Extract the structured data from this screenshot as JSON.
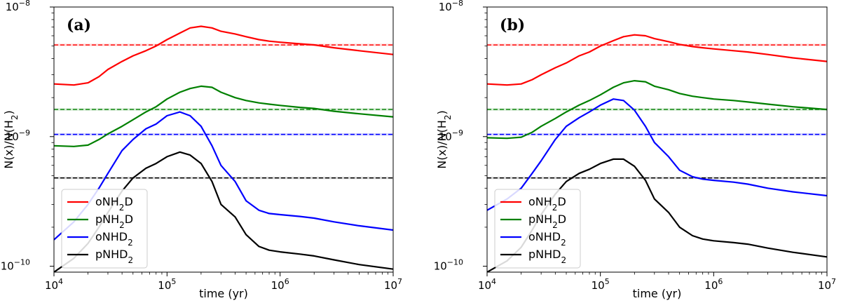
{
  "chart_data": [
    {
      "type": "line",
      "panel_label": "(a)",
      "xlabel": "time (yr)",
      "ylabel": "N(x)/N(H₂)",
      "xscale": "log",
      "yscale": "log",
      "xlim": [
        10000,
        10000000
      ],
      "ylim": [
        9e-11,
        1e-08
      ],
      "x_ticks": [
        {
          "value": 10000,
          "mant": "10",
          "exp": "4"
        },
        {
          "value": 100000,
          "mant": "10",
          "exp": "5"
        },
        {
          "value": 1000000,
          "mant": "10",
          "exp": "6"
        },
        {
          "value": 10000000,
          "mant": "10",
          "exp": "7"
        }
      ],
      "y_ticks": [
        {
          "value": 1e-10,
          "mant": "10",
          "exp": "−10"
        },
        {
          "value": 1e-09,
          "mant": "10",
          "exp": "−9"
        },
        {
          "value": 1e-08,
          "mant": "10",
          "exp": "−8"
        }
      ],
      "legend_position": "lower-left",
      "series": [
        {
          "name": "oNH₂D",
          "color": "#ff0000",
          "observed": 5.1e-09,
          "x": [
            10000,
            15000,
            20000,
            25000,
            30000,
            40000,
            50000,
            65000,
            80000,
            100000,
            130000,
            160000,
            200000,
            250000,
            300000,
            400000,
            500000,
            650000,
            800000,
            1000000,
            1500000,
            2000000,
            3000000,
            5000000,
            10000000
          ],
          "y": [
            2.55e-09,
            2.5e-09,
            2.6e-09,
            2.9e-09,
            3.3e-09,
            3.8e-09,
            4.2e-09,
            4.6e-09,
            5e-09,
            5.6e-09,
            6.3e-09,
            6.9e-09,
            7.1e-09,
            6.9e-09,
            6.5e-09,
            6.2e-09,
            5.9e-09,
            5.6e-09,
            5.45e-09,
            5.35e-09,
            5.2e-09,
            5.1e-09,
            4.85e-09,
            4.6e-09,
            4.3e-09
          ]
        },
        {
          "name": "pNH₂D",
          "color": "#008000",
          "observed": 1.62e-09,
          "x": [
            10000,
            15000,
            20000,
            25000,
            30000,
            40000,
            50000,
            65000,
            80000,
            100000,
            130000,
            160000,
            200000,
            250000,
            300000,
            400000,
            500000,
            650000,
            800000,
            1000000,
            1500000,
            2000000,
            3000000,
            5000000,
            10000000
          ],
          "y": [
            8.5e-10,
            8.4e-10,
            8.6e-10,
            9.5e-10,
            1.05e-09,
            1.2e-09,
            1.35e-09,
            1.55e-09,
            1.7e-09,
            1.95e-09,
            2.2e-09,
            2.35e-09,
            2.45e-09,
            2.4e-09,
            2.2e-09,
            2e-09,
            1.9e-09,
            1.82e-09,
            1.78e-09,
            1.74e-09,
            1.68e-09,
            1.65e-09,
            1.57e-09,
            1.5e-09,
            1.42e-09
          ]
        },
        {
          "name": "oNHD₂",
          "color": "#0000ff",
          "observed": 1.04e-09,
          "x": [
            10000,
            15000,
            20000,
            25000,
            30000,
            40000,
            50000,
            65000,
            80000,
            100000,
            130000,
            160000,
            200000,
            250000,
            300000,
            400000,
            500000,
            650000,
            800000,
            1000000,
            1500000,
            2000000,
            3000000,
            5000000,
            10000000
          ],
          "y": [
            1.6e-10,
            2.2e-10,
            3e-10,
            4e-10,
            5.2e-10,
            7.8e-10,
            9.5e-10,
            1.15e-09,
            1.25e-09,
            1.45e-09,
            1.55e-09,
            1.45e-09,
            1.2e-09,
            8.5e-10,
            6e-10,
            4.5e-10,
            3.2e-10,
            2.7e-10,
            2.55e-10,
            2.5e-10,
            2.42e-10,
            2.35e-10,
            2.2e-10,
            2.05e-10,
            1.9e-10
          ]
        },
        {
          "name": "pNHD₂",
          "color": "#000000",
          "observed": 4.8e-10,
          "x": [
            10000,
            15000,
            20000,
            25000,
            30000,
            40000,
            50000,
            65000,
            80000,
            100000,
            130000,
            160000,
            200000,
            250000,
            300000,
            400000,
            500000,
            650000,
            800000,
            1000000,
            1500000,
            2000000,
            3000000,
            5000000,
            10000000
          ],
          "y": [
            9e-11,
            1.15e-10,
            1.5e-10,
            2e-10,
            2.6e-10,
            3.8e-10,
            4.8e-10,
            5.7e-10,
            6.2e-10,
            7e-10,
            7.6e-10,
            7.2e-10,
            6.2e-10,
            4.5e-10,
            3e-10,
            2.4e-10,
            1.75e-10,
            1.42e-10,
            1.33e-10,
            1.29e-10,
            1.24e-10,
            1.2e-10,
            1.12e-10,
            1.03e-10,
            9.5e-11
          ]
        }
      ]
    },
    {
      "type": "line",
      "panel_label": "(b)",
      "xlabel": "time (yr)",
      "ylabel": "N(x)/N(H₂)",
      "xscale": "log",
      "yscale": "log",
      "xlim": [
        10000,
        10000000
      ],
      "ylim": [
        9e-11,
        1e-08
      ],
      "x_ticks": [
        {
          "value": 10000,
          "mant": "10",
          "exp": "4"
        },
        {
          "value": 100000,
          "mant": "10",
          "exp": "5"
        },
        {
          "value": 1000000,
          "mant": "10",
          "exp": "6"
        },
        {
          "value": 10000000,
          "mant": "10",
          "exp": "7"
        }
      ],
      "y_ticks": [
        {
          "value": 1e-10,
          "mant": "10",
          "exp": "−10"
        },
        {
          "value": 1e-09,
          "mant": "10",
          "exp": "−9"
        },
        {
          "value": 1e-08,
          "mant": "10",
          "exp": "−8"
        }
      ],
      "legend_position": "lower-left",
      "series": [
        {
          "name": "oNH₂D",
          "color": "#ff0000",
          "observed": 5.1e-09,
          "x": [
            10000,
            15000,
            20000,
            25000,
            30000,
            40000,
            50000,
            65000,
            80000,
            100000,
            130000,
            160000,
            200000,
            250000,
            300000,
            400000,
            500000,
            650000,
            800000,
            1000000,
            1500000,
            2000000,
            3000000,
            5000000,
            10000000
          ],
          "y": [
            2.55e-09,
            2.5e-09,
            2.55e-09,
            2.75e-09,
            3e-09,
            3.4e-09,
            3.7e-09,
            4.2e-09,
            4.5e-09,
            5e-09,
            5.5e-09,
            5.9e-09,
            6.1e-09,
            6e-09,
            5.7e-09,
            5.4e-09,
            5.15e-09,
            4.95e-09,
            4.85e-09,
            4.75e-09,
            4.6e-09,
            4.5e-09,
            4.3e-09,
            4.05e-09,
            3.8e-09
          ]
        },
        {
          "name": "pNH₂D",
          "color": "#008000",
          "observed": 1.62e-09,
          "x": [
            10000,
            15000,
            20000,
            25000,
            30000,
            40000,
            50000,
            65000,
            80000,
            100000,
            130000,
            160000,
            200000,
            250000,
            300000,
            400000,
            500000,
            650000,
            800000,
            1000000,
            1500000,
            2000000,
            3000000,
            5000000,
            10000000
          ],
          "y": [
            9.8e-10,
            9.7e-10,
            9.9e-10,
            1.08e-09,
            1.2e-09,
            1.38e-09,
            1.55e-09,
            1.75e-09,
            1.9e-09,
            2.1e-09,
            2.4e-09,
            2.6e-09,
            2.7e-09,
            2.65e-09,
            2.45e-09,
            2.3e-09,
            2.15e-09,
            2.05e-09,
            2e-09,
            1.95e-09,
            1.9e-09,
            1.85e-09,
            1.78e-09,
            1.7e-09,
            1.62e-09
          ]
        },
        {
          "name": "oNHD₂",
          "color": "#0000ff",
          "observed": 1.04e-09,
          "x": [
            10000,
            15000,
            20000,
            25000,
            30000,
            40000,
            50000,
            65000,
            80000,
            100000,
            130000,
            160000,
            200000,
            250000,
            300000,
            400000,
            500000,
            650000,
            800000,
            1000000,
            1500000,
            2000000,
            3000000,
            5000000,
            10000000
          ],
          "y": [
            2.7e-10,
            3.3e-10,
            4e-10,
            5.2e-10,
            6.5e-10,
            9.5e-10,
            1.2e-09,
            1.4e-09,
            1.55e-09,
            1.75e-09,
            1.95e-09,
            1.9e-09,
            1.6e-09,
            1.2e-09,
            9e-10,
            7e-10,
            5.5e-10,
            4.9e-10,
            4.7e-10,
            4.6e-10,
            4.45e-10,
            4.3e-10,
            4e-10,
            3.75e-10,
            3.5e-10
          ]
        },
        {
          "name": "pNHD₂",
          "color": "#000000",
          "observed": 4.8e-10,
          "x": [
            10000,
            15000,
            20000,
            25000,
            30000,
            40000,
            50000,
            65000,
            80000,
            100000,
            130000,
            160000,
            200000,
            250000,
            300000,
            400000,
            500000,
            650000,
            800000,
            1000000,
            1500000,
            2000000,
            3000000,
            5000000,
            10000000
          ],
          "y": [
            9e-11,
            1.1e-10,
            1.4e-10,
            1.9e-10,
            2.5e-10,
            3.6e-10,
            4.5e-10,
            5.2e-10,
            5.6e-10,
            6.2e-10,
            6.7e-10,
            6.7e-10,
            5.9e-10,
            4.6e-10,
            3.3e-10,
            2.6e-10,
            2e-10,
            1.72e-10,
            1.62e-10,
            1.57e-10,
            1.52e-10,
            1.48e-10,
            1.38e-10,
            1.28e-10,
            1.18e-10
          ]
        }
      ]
    }
  ]
}
